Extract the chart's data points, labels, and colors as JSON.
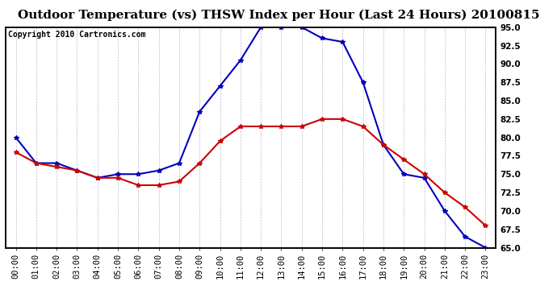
{
  "title": "Outdoor Temperature (vs) THSW Index per Hour (Last 24 Hours) 20100815",
  "copyright": "Copyright 2010 Cartronics.com",
  "hours": [
    "00:00",
    "01:00",
    "02:00",
    "03:00",
    "04:00",
    "05:00",
    "06:00",
    "07:00",
    "08:00",
    "09:00",
    "10:00",
    "11:00",
    "12:00",
    "13:00",
    "14:00",
    "15:00",
    "16:00",
    "17:00",
    "18:00",
    "19:00",
    "20:00",
    "21:00",
    "22:00",
    "23:00"
  ],
  "thsw": [
    80.0,
    76.5,
    76.5,
    75.5,
    74.5,
    75.0,
    75.0,
    75.5,
    76.5,
    83.5,
    87.0,
    90.5,
    95.0,
    95.0,
    95.0,
    93.5,
    93.0,
    87.5,
    79.0,
    75.0,
    74.5,
    70.0,
    66.5,
    65.0
  ],
  "temp": [
    78.0,
    76.5,
    76.0,
    75.5,
    74.5,
    74.5,
    73.5,
    73.5,
    74.0,
    76.5,
    79.5,
    81.5,
    81.5,
    81.5,
    81.5,
    82.5,
    82.5,
    81.5,
    79.0,
    77.0,
    75.0,
    72.5,
    70.5,
    68.0
  ],
  "thsw_color": "#0000bb",
  "temp_color": "#cc0000",
  "bg_color": "#ffffff",
  "grid_color": "#aaaacc",
  "ylim": [
    65.0,
    95.0
  ],
  "yticks": [
    65.0,
    67.5,
    70.0,
    72.5,
    75.0,
    77.5,
    80.0,
    82.5,
    85.0,
    87.5,
    90.0,
    92.5,
    95.0
  ],
  "title_fontsize": 11,
  "copyright_fontsize": 7,
  "tick_fontsize": 7.5,
  "linewidth": 1.5,
  "markersize": 4
}
